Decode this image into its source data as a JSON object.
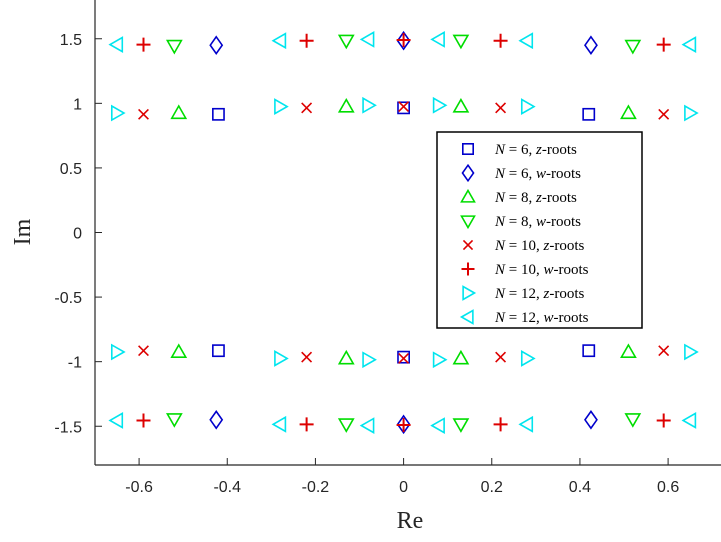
{
  "chart_data": {
    "type": "scatter",
    "xlabel": "Re",
    "ylabel": "Im",
    "xlim": [
      -0.7,
      0.72
    ],
    "ylim": [
      -1.8,
      1.8
    ],
    "xticks": [
      -0.6,
      -0.4,
      -0.2,
      0,
      0.2,
      0.4,
      0.6
    ],
    "xtick_labels": [
      "-0.6",
      "-0.4",
      "-0.2",
      "0",
      "0.2",
      "0.4",
      "0.6"
    ],
    "yticks": [
      1.5,
      1,
      0.5,
      0,
      -0.5,
      -1,
      -1.5
    ],
    "ytick_labels": [
      "1.5",
      "1",
      "0.5",
      "0",
      "-0.5",
      "-1",
      "-1.5"
    ],
    "grid": false,
    "legend_position": "center-right",
    "series": [
      {
        "name": "N = 6, z-roots",
        "marker": "square",
        "color": "#0000CC",
        "points": [
          [
            -0.42,
            0.915
          ],
          [
            0.0,
            0.965
          ],
          [
            0.42,
            0.915
          ],
          [
            -0.42,
            -0.915
          ],
          [
            0.0,
            -0.965
          ],
          [
            0.42,
            -0.915
          ]
        ]
      },
      {
        "name": "N = 6, w-roots",
        "marker": "diamond",
        "color": "#0000CC",
        "points": [
          [
            -0.425,
            1.45
          ],
          [
            0.0,
            1.485
          ],
          [
            0.425,
            1.45
          ],
          [
            -0.425,
            -1.45
          ],
          [
            0.0,
            -1.485
          ],
          [
            0.425,
            -1.45
          ]
        ]
      },
      {
        "name": "N = 8, z-roots",
        "marker": "triangle-up",
        "color": "#00DD00",
        "points": [
          [
            -0.51,
            0.925
          ],
          [
            -0.13,
            0.975
          ],
          [
            0.13,
            0.975
          ],
          [
            0.51,
            0.925
          ],
          [
            -0.51,
            -0.925
          ],
          [
            -0.13,
            -0.975
          ],
          [
            0.13,
            -0.975
          ],
          [
            0.51,
            -0.925
          ]
        ]
      },
      {
        "name": "N = 8, w-roots",
        "marker": "triangle-down",
        "color": "#00DD00",
        "points": [
          [
            -0.52,
            1.445
          ],
          [
            -0.13,
            1.485
          ],
          [
            0.13,
            1.485
          ],
          [
            0.52,
            1.445
          ],
          [
            -0.52,
            -1.445
          ],
          [
            -0.13,
            -1.485
          ],
          [
            0.13,
            -1.485
          ],
          [
            0.52,
            -1.445
          ]
        ]
      },
      {
        "name": "N = 10, z-roots",
        "marker": "x",
        "color": "#DD0000",
        "points": [
          [
            -0.59,
            0.915
          ],
          [
            -0.22,
            0.965
          ],
          [
            0.0,
            0.975
          ],
          [
            0.22,
            0.965
          ],
          [
            0.59,
            0.915
          ],
          [
            -0.59,
            -0.915
          ],
          [
            -0.22,
            -0.965
          ],
          [
            0.0,
            -0.975
          ],
          [
            0.22,
            -0.965
          ],
          [
            0.59,
            -0.915
          ]
        ]
      },
      {
        "name": "N = 10, w-roots",
        "marker": "plus",
        "color": "#DD0000",
        "points": [
          [
            -0.59,
            1.455
          ],
          [
            -0.22,
            1.485
          ],
          [
            0.0,
            1.49
          ],
          [
            0.22,
            1.485
          ],
          [
            0.59,
            1.455
          ],
          [
            -0.59,
            -1.455
          ],
          [
            -0.22,
            -1.485
          ],
          [
            0.0,
            -1.49
          ],
          [
            0.22,
            -1.485
          ],
          [
            0.59,
            -1.455
          ]
        ]
      },
      {
        "name": "N = 12, z-roots",
        "marker": "triangle-right",
        "color": "#00E5EE",
        "points": [
          [
            -0.65,
            0.925
          ],
          [
            -0.28,
            0.975
          ],
          [
            -0.08,
            0.985
          ],
          [
            0.08,
            0.985
          ],
          [
            0.28,
            0.975
          ],
          [
            0.65,
            0.925
          ],
          [
            -0.65,
            -0.925
          ],
          [
            -0.28,
            -0.975
          ],
          [
            -0.08,
            -0.985
          ],
          [
            0.08,
            -0.985
          ],
          [
            0.28,
            -0.975
          ],
          [
            0.65,
            -0.925
          ]
        ]
      },
      {
        "name": "N = 12, w-roots",
        "marker": "triangle-left",
        "color": "#00E5EE",
        "points": [
          [
            -0.65,
            1.455
          ],
          [
            -0.28,
            1.485
          ],
          [
            -0.08,
            1.495
          ],
          [
            0.08,
            1.495
          ],
          [
            0.28,
            1.485
          ],
          [
            0.65,
            1.455
          ],
          [
            -0.65,
            -1.455
          ],
          [
            -0.28,
            -1.485
          ],
          [
            -0.08,
            -1.495
          ],
          [
            0.08,
            -1.495
          ],
          [
            0.28,
            -1.485
          ],
          [
            0.65,
            -1.455
          ]
        ]
      }
    ],
    "legend": [
      {
        "n": "N = 6",
        "kind": "z",
        "suffix": "-roots"
      },
      {
        "n": "N = 6",
        "kind": "w",
        "suffix": "-roots"
      },
      {
        "n": "N = 8",
        "kind": "z",
        "suffix": "-roots"
      },
      {
        "n": "N = 8",
        "kind": "w",
        "suffix": "-roots"
      },
      {
        "n": "N = 10",
        "kind": "z",
        "suffix": "-roots"
      },
      {
        "n": "N = 10",
        "kind": "w",
        "suffix": "-roots"
      },
      {
        "n": "N = 12",
        "kind": "z",
        "suffix": "-roots"
      },
      {
        "n": "N = 12",
        "kind": "w",
        "suffix": "-roots"
      }
    ]
  }
}
